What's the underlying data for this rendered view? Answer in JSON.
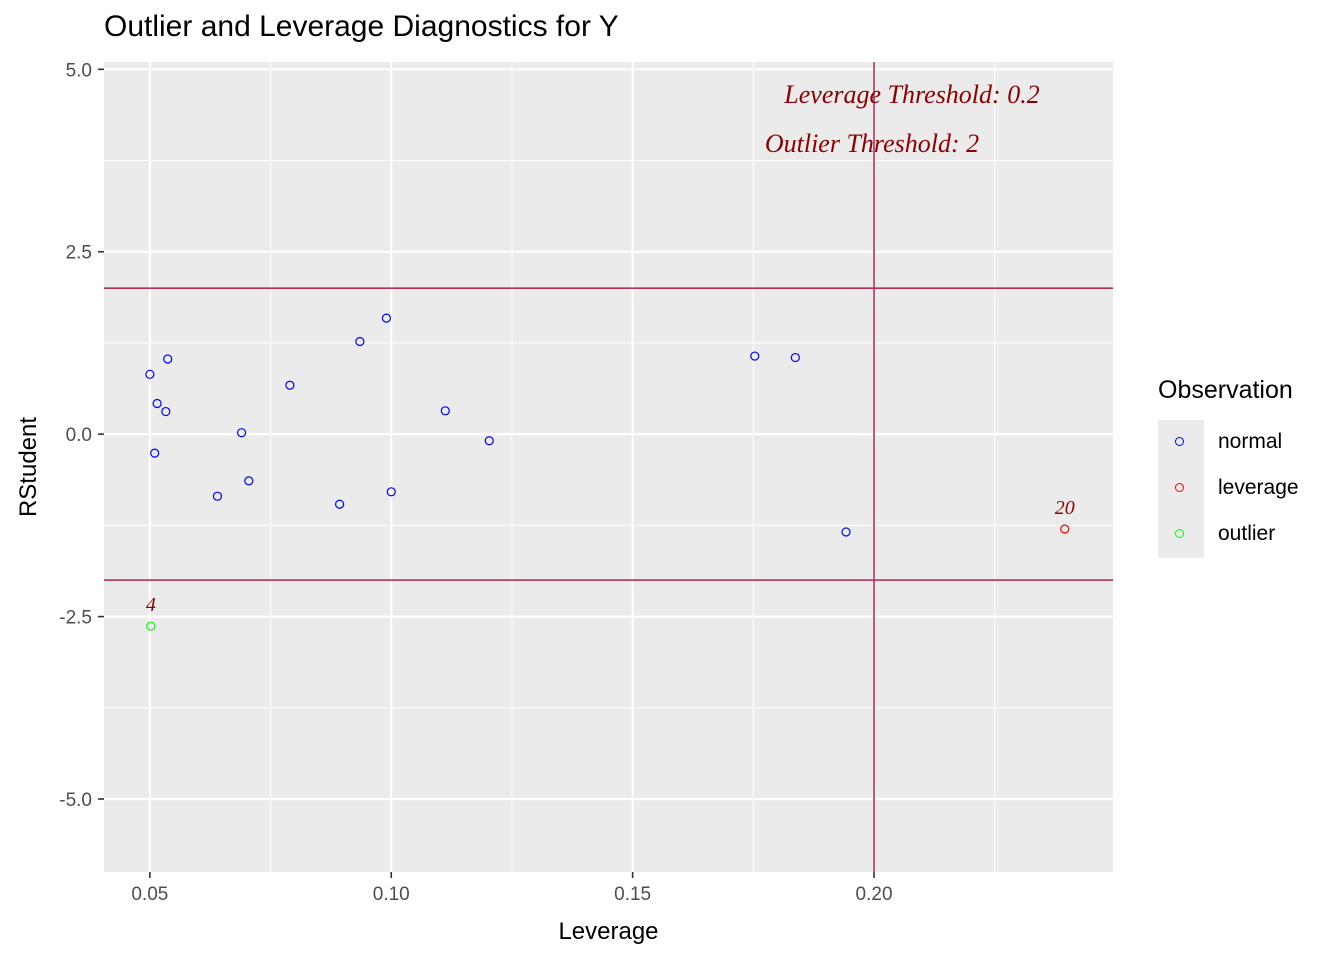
{
  "chart_data": {
    "type": "scatter",
    "title": "Outlier and Leverage Diagnostics for Y",
    "xlabel": "Leverage",
    "ylabel": "RStudent",
    "xlim": [
      0.0405,
      0.2495
    ],
    "ylim": [
      -6.0,
      5.1
    ],
    "x_ticks": [
      0.05,
      0.1,
      0.15,
      0.2
    ],
    "x_tick_labels": [
      "0.05",
      "0.10",
      "0.15",
      "0.20"
    ],
    "y_ticks": [
      5.0,
      2.5,
      0.0,
      -2.5,
      -5.0
    ],
    "y_tick_labels": [
      "5.0",
      "2.5",
      "0.0",
      "-2.5",
      "-5.0"
    ],
    "grid": true,
    "legend_position": "right",
    "legend_title": "Observation",
    "thresholds": {
      "leverage": 0.2,
      "outlier_upper": 2,
      "outlier_lower": -2,
      "leverage_label": "Leverage Threshold: 0.2",
      "outlier_label": "Outlier Threshold: 2"
    },
    "series": [
      {
        "name": "normal",
        "color": "#0000ff",
        "points": [
          {
            "x": 0.05,
            "y": 0.82
          },
          {
            "x": 0.051,
            "y": -0.26
          },
          {
            "x": 0.0515,
            "y": 0.42
          },
          {
            "x": 0.0533,
            "y": 0.31
          },
          {
            "x": 0.0537,
            "y": 1.03
          },
          {
            "x": 0.064,
            "y": -0.85
          },
          {
            "x": 0.069,
            "y": 0.02
          },
          {
            "x": 0.0705,
            "y": -0.64
          },
          {
            "x": 0.079,
            "y": 0.67
          },
          {
            "x": 0.0893,
            "y": -0.96
          },
          {
            "x": 0.0935,
            "y": 1.27
          },
          {
            "x": 0.099,
            "y": 1.59
          },
          {
            "x": 0.1,
            "y": -0.79
          },
          {
            "x": 0.1112,
            "y": 0.32
          },
          {
            "x": 0.1203,
            "y": -0.09
          },
          {
            "x": 0.1753,
            "y": 1.07
          },
          {
            "x": 0.1837,
            "y": 1.05
          },
          {
            "x": 0.1942,
            "y": -1.34
          }
        ]
      },
      {
        "name": "leverage",
        "color": "#ff0000",
        "points": [
          {
            "x": 0.2395,
            "y": -1.3,
            "label": "20"
          }
        ]
      },
      {
        "name": "outlier",
        "color": "#00ff00",
        "points": [
          {
            "x": 0.0502,
            "y": -2.63,
            "label": "4"
          }
        ]
      }
    ]
  },
  "colors": {
    "panel_bg": "#ebebeb",
    "grid": "#ffffff",
    "threshold_line": "#b03060",
    "annotation": "#8b0000",
    "point_label": "#8b0000"
  }
}
